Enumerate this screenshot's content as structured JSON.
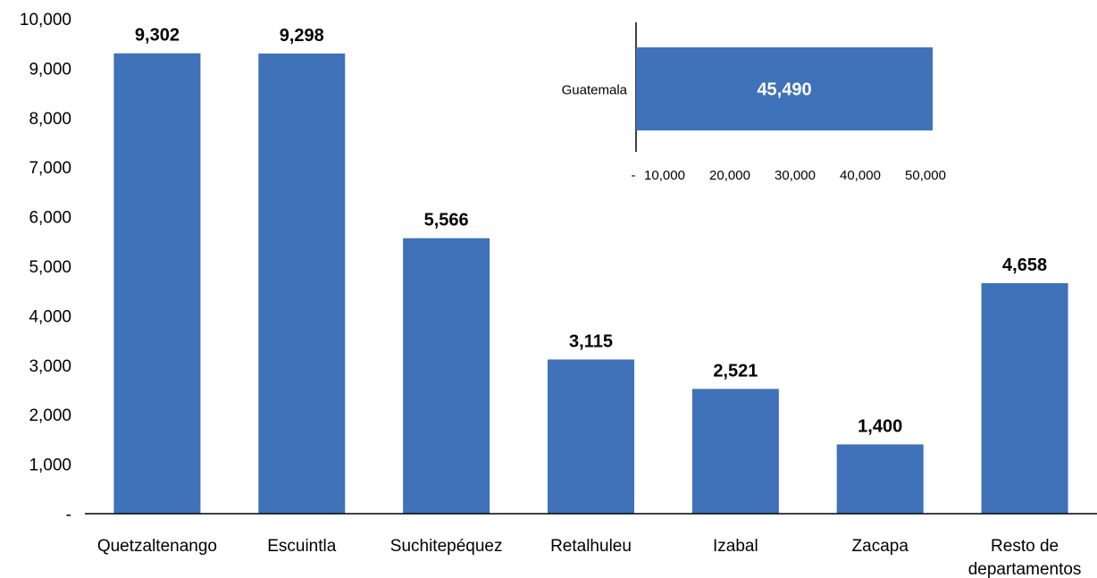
{
  "colors": {
    "bar": "#3f72b8",
    "axis": "#000000"
  },
  "chart_data": [
    {
      "type": "bar",
      "orientation": "vertical",
      "categories": [
        "Quetzaltenango",
        "Escuintla",
        "Suchitepéquez",
        "Retalhuleu",
        "Izabal",
        "Zacapa",
        "Resto de departamentos"
      ],
      "category_lines": [
        [
          "Quetzaltenango"
        ],
        [
          "Escuintla"
        ],
        [
          "Suchitepéquez"
        ],
        [
          "Retalhuleu"
        ],
        [
          "Izabal"
        ],
        [
          "Zacapa"
        ],
        [
          "Resto de",
          "departamentos"
        ]
      ],
      "values": [
        9302,
        9298,
        5566,
        3115,
        2521,
        1400,
        4658
      ],
      "data_labels": [
        "9,302",
        "9,298",
        "5,566",
        "3,115",
        "2,521",
        "1,400",
        "4,658"
      ],
      "ylim": [
        0,
        10000
      ],
      "yticks": [
        0,
        1000,
        2000,
        3000,
        4000,
        5000,
        6000,
        7000,
        8000,
        9000,
        10000
      ],
      "ytick_labels": [
        "-",
        "1,000",
        "2,000",
        "3,000",
        "4,000",
        "5,000",
        "6,000",
        "7,000",
        "8,000",
        "9,000",
        "10,000"
      ],
      "grid": false,
      "legend": "none"
    },
    {
      "type": "bar",
      "orientation": "horizontal",
      "categories": [
        "Guatemala"
      ],
      "values": [
        45490
      ],
      "data_labels": [
        "45,490"
      ],
      "xlim": [
        0,
        50000
      ],
      "xticks": [
        0,
        10000,
        20000,
        30000,
        40000,
        50000
      ],
      "xtick_labels": [
        "-",
        "10,000",
        "20,000",
        "30,000",
        "40,000",
        "50,000"
      ],
      "grid": false,
      "legend": "none"
    }
  ]
}
